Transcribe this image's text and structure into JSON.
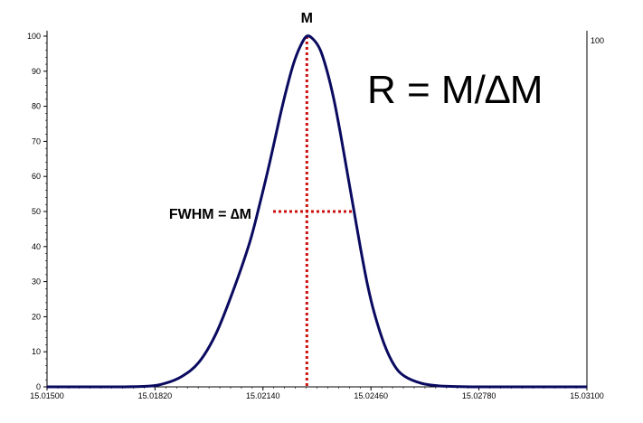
{
  "chart_data": {
    "type": "line",
    "title": "",
    "xlabel": "",
    "ylabel": "",
    "xlim": [
      15.015,
      15.031
    ],
    "ylim": [
      0,
      100
    ],
    "x_ticks": [
      "15.01500",
      "15.01820",
      "15.02140",
      "15.02460",
      "15.02780",
      "15.03100"
    ],
    "y_ticks": [
      "0",
      "10",
      "20",
      "30",
      "40",
      "50",
      "60",
      "70",
      "80",
      "90",
      "100"
    ],
    "right_axis_label": "100",
    "grid": false,
    "series": [
      {
        "x": [
          15.015,
          15.017,
          15.018,
          15.0185,
          15.019,
          15.0195,
          15.02,
          15.0205,
          15.021,
          15.0213,
          15.0216,
          15.0219,
          15.0221,
          15.0223,
          15.0225,
          15.0227,
          15.0229,
          15.0231,
          15.0233,
          15.0235,
          15.0237,
          15.0239,
          15.0241,
          15.0243,
          15.0245,
          15.0247,
          15.025,
          15.0253,
          15.0256,
          15.0261,
          15.0266,
          15.0271,
          15.0276,
          15.0281,
          15.031
        ],
        "values": [
          0,
          0,
          0.2,
          1,
          3,
          7,
          15,
          27,
          41,
          52,
          64,
          77,
          85,
          92,
          97,
          100,
          99,
          96,
          90,
          82,
          72,
          61,
          50,
          39,
          29,
          21,
          12,
          6,
          3,
          1,
          0.3,
          0.1,
          0,
          0,
          0
        ],
        "color": "#0a0a60"
      }
    ],
    "peak_label": "M",
    "fwhm_label": "FWHM = ∆M",
    "formula": "R = M/∆M",
    "peak_x": 15.0227,
    "fwhm_x": [
      15.0217,
      15.0241
    ],
    "fwhm_y": 50,
    "marker_color": "#cc1111"
  }
}
